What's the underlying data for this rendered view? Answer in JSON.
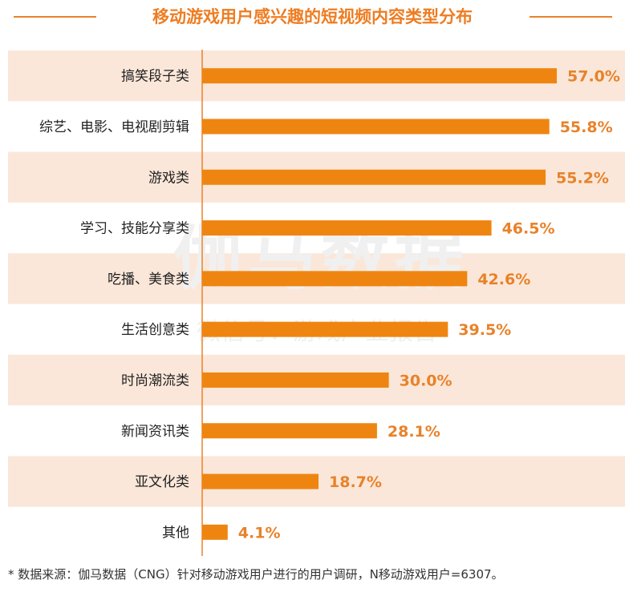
{
  "title": "移动游戏用户感兴趣的短视频内容类型分布",
  "watermark": {
    "line1": "伽马数据",
    "line2": "微信号：游戏产业报告"
  },
  "footnote": "*  数据来源：伽马数据（CNG）针对移动游戏用户进行的用户调研，N移动游戏用户=6307。",
  "colors": {
    "bar": "#ef8511",
    "band": "#fbe7d9",
    "value_label": "#e8822a",
    "title": "#ee7d22",
    "axis": "#e8822a"
  },
  "chart_data": {
    "type": "bar",
    "orientation": "horizontal",
    "categories": [
      "搞笑段子类",
      "综艺、电影、电视剧剪辑",
      "游戏类",
      "学习、技能分享类",
      "吃播、美食类",
      "生活创意类",
      "时尚潮流类",
      "新闻资讯类",
      "亚文化类",
      "其他"
    ],
    "values": [
      57.0,
      55.8,
      55.2,
      46.5,
      42.6,
      39.5,
      30.0,
      28.1,
      18.7,
      4.1
    ],
    "value_labels": [
      "57.0%",
      "55.8%",
      "55.2%",
      "46.5%",
      "42.6%",
      "39.5%",
      "30.0%",
      "28.1%",
      "18.7%",
      "4.1%"
    ],
    "title": "移动游戏用户感兴趣的短视频内容类型分布",
    "xlabel": "",
    "ylabel": "",
    "xlim": [
      0,
      57.0
    ],
    "grid": false,
    "legend": "none"
  }
}
